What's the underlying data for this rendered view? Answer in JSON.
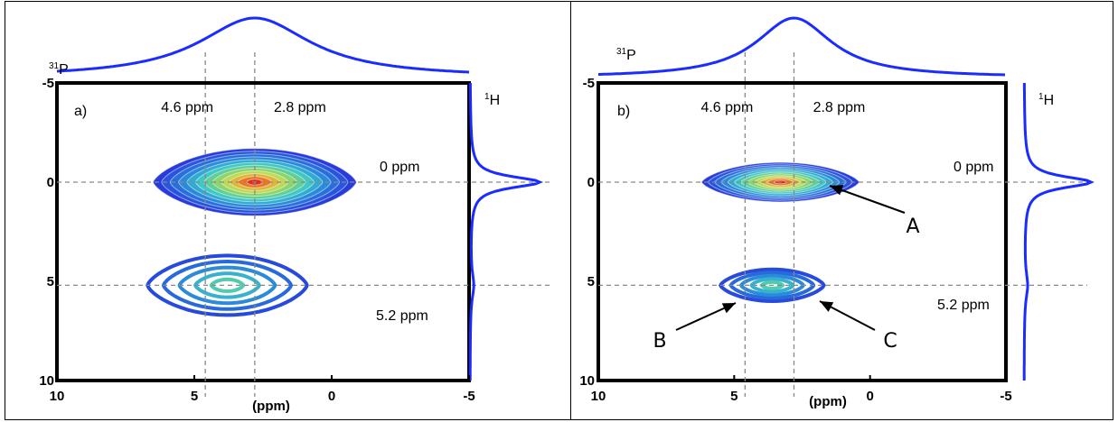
{
  "chart_data": [
    {
      "type": "contour",
      "panel_label": "a)",
      "x_axis": {
        "label": "(ppm)",
        "range": [
          10,
          -5
        ],
        "ticks": [
          "10",
          "5",
          "0",
          "-5"
        ]
      },
      "y_axis": {
        "range": [
          -5,
          10
        ],
        "ticks": [
          "-5",
          "0",
          "5",
          "10"
        ]
      },
      "top_projection_label": {
        "sup": "31",
        "base": "P"
      },
      "side_projection_label": {
        "sup": "1",
        "base": "H"
      },
      "annotations": [
        {
          "text": "4.6 ppm",
          "x_ppm": 4.6
        },
        {
          "text": "2.8 ppm",
          "x_ppm": 2.8
        },
        {
          "text": "0 ppm",
          "y_ppm": 0
        },
        {
          "text": "5.2 ppm",
          "y_ppm": 5.2
        }
      ],
      "contour_peaks": [
        {
          "x_ppm": 2.8,
          "y_ppm": 0,
          "x_halfwidth": 3.7,
          "y_halfwidth": 1.7,
          "max_level": "high"
        },
        {
          "x_ppm": 3.8,
          "y_ppm": 5.2,
          "x_halfwidth": 2.9,
          "y_halfwidth": 1.5,
          "max_level": "low"
        }
      ],
      "guide_lines": {
        "x_ppm": [
          4.6,
          2.8
        ],
        "y_ppm": [
          0,
          5.2
        ]
      },
      "arrow_labels": []
    },
    {
      "type": "contour",
      "panel_label": "b)",
      "x_axis": {
        "label": "(ppm)",
        "range": [
          10,
          -5
        ],
        "ticks": [
          "10",
          "5",
          "0",
          "-5"
        ]
      },
      "y_axis": {
        "range": [
          -5,
          10
        ],
        "ticks": [
          "-5",
          "0",
          "5",
          "10"
        ]
      },
      "top_projection_label": {
        "sup": "31",
        "base": "P"
      },
      "side_projection_label": {
        "sup": "1",
        "base": "H"
      },
      "annotations": [
        {
          "text": "4.6 ppm",
          "x_ppm": 4.6
        },
        {
          "text": "2.8 ppm",
          "x_ppm": 2.8
        },
        {
          "text": "0 ppm",
          "y_ppm": 0
        },
        {
          "text": "5.2 ppm",
          "y_ppm": 5.2
        }
      ],
      "contour_peaks": [
        {
          "x_ppm": 3.3,
          "y_ppm": 0,
          "x_halfwidth": 2.9,
          "y_halfwidth": 1.0,
          "max_level": "high"
        },
        {
          "x_ppm": 3.6,
          "y_ppm": 5.2,
          "x_halfwidth": 1.9,
          "y_halfwidth": 0.8,
          "max_level": "low"
        }
      ],
      "guide_lines": {
        "x_ppm": [
          4.6,
          2.8
        ],
        "y_ppm": [
          0,
          5.2
        ]
      },
      "arrow_labels": [
        {
          "text": "A",
          "points_to": [
            2.8,
            0
          ]
        },
        {
          "text": "B",
          "points_to": [
            4.8,
            5.4
          ]
        },
        {
          "text": "C",
          "points_to": [
            2.8,
            5.4
          ]
        }
      ]
    }
  ]
}
